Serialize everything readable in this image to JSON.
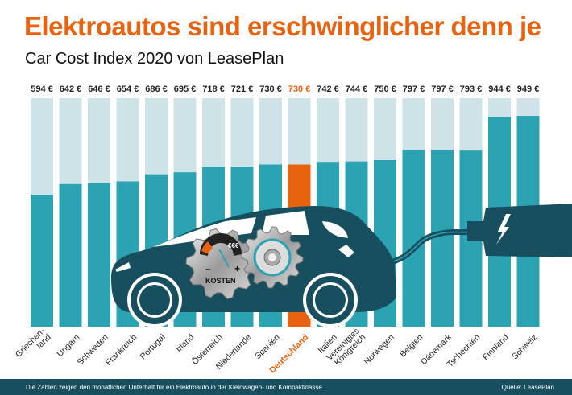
{
  "title": "Elektroautos sind erschwinglicher denn je",
  "subtitle": "Car Cost Index 2020 von LeasePlan",
  "footer": {
    "note": "Die Zahlen zeigen den monatlichen Unterhalt für ein Elektroauto in der Kleinwagen- und Kompaktklasse.",
    "source": "Quelle: LeasePlan"
  },
  "illustration": {
    "gauge_label": "KOSTEN",
    "minus": "–",
    "plus": "+",
    "currency": "€€€"
  },
  "colors": {
    "bar": "#2ba3b3",
    "bar_background": "#cde3e8",
    "highlight": "#e8620f",
    "car": "#174f5e",
    "footer": "#174f5e"
  },
  "chart_data": {
    "type": "bar",
    "unit": "€",
    "highlight": "Deutschland",
    "ylim": [
      0,
      1000
    ],
    "grid": false,
    "categories": [
      "Griechen-\nland",
      "Ungarn",
      "Schweden",
      "Frankreich",
      "Portugal",
      "Irland",
      "Österreich",
      "Niederlande",
      "Spanien",
      "Deutschland",
      "Italien",
      "Vereinigtes\nKönigreich",
      "Norwegen",
      "Belgien",
      "Dänemark",
      "Tschechien",
      "Finnland",
      "Schweiz"
    ],
    "values": [
      594,
      642,
      646,
      654,
      686,
      695,
      718,
      721,
      730,
      730,
      742,
      744,
      750,
      797,
      797,
      793,
      944,
      949
    ],
    "value_labels": [
      "594 €",
      "642 €",
      "646 €",
      "654 €",
      "686 €",
      "695 €",
      "718 €",
      "721 €",
      "730 €",
      "730 €",
      "742 €",
      "744 €",
      "750 €",
      "797 €",
      "797 €",
      "793 €",
      "944 €",
      "949 €"
    ]
  }
}
